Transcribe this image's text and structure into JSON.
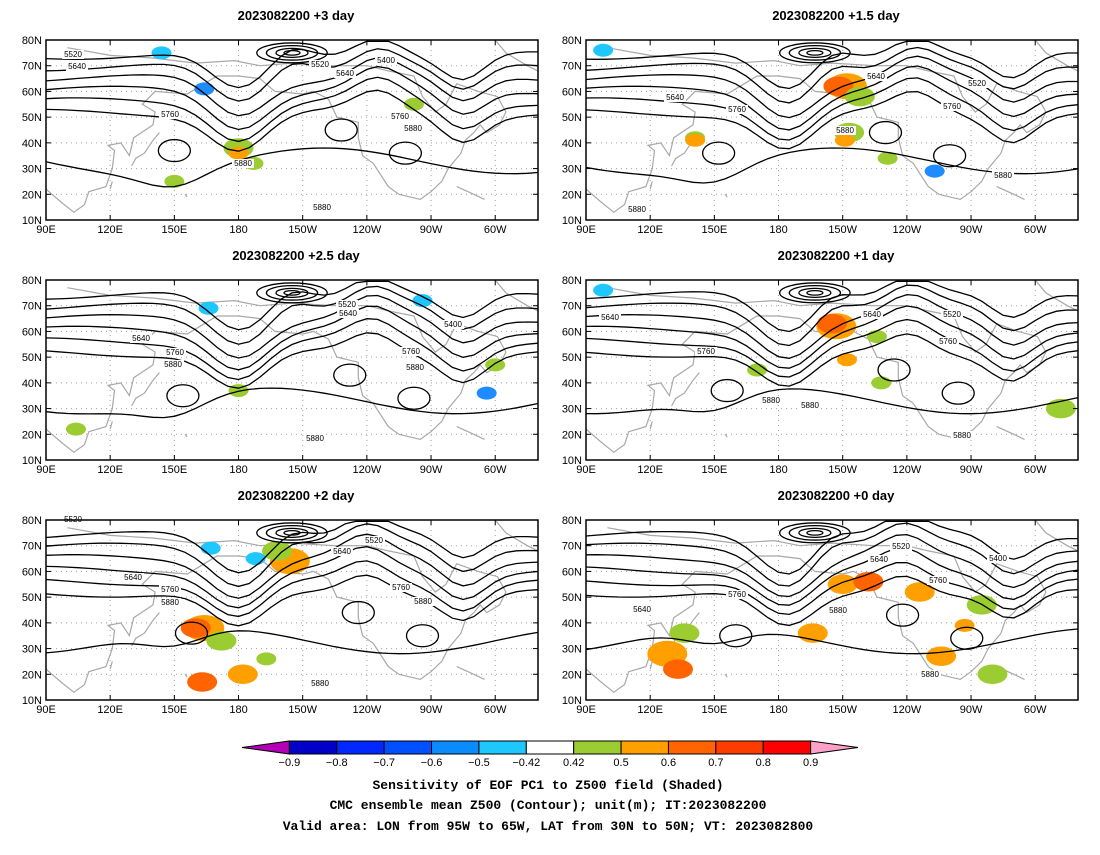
{
  "panels": [
    {
      "title": "2023082200  +3 day",
      "contour_labels": [
        "5520",
        "5640",
        "5520",
        "5640",
        "5400",
        "5760",
        "5760",
        "5880",
        "5880",
        "5880"
      ],
      "shading": [
        {
          "c": "#1ec8ff",
          "lon": 144,
          "lat": 75,
          "r": 1
        },
        {
          "c": "#1e8cff",
          "lon": 164,
          "lat": 61,
          "r": 1
        },
        {
          "c": "#9bcd32",
          "lon": 180,
          "lat": 38,
          "r": 2
        },
        {
          "c": "#ffa000",
          "lon": 180,
          "lat": 36,
          "r": 1
        },
        {
          "c": "#9bcd32",
          "lon": 187,
          "lat": 32,
          "r": 1
        },
        {
          "c": "#9bcd32",
          "lon": 262,
          "lat": 55,
          "r": 1
        },
        {
          "c": "#9bcd32",
          "lon": 150,
          "lat": 25,
          "r": 1
        }
      ]
    },
    {
      "title": "2023082200  +1.5 day",
      "contour_labels": [
        "5640",
        "5640",
        "5520",
        "5760",
        "5760",
        "5880",
        "5880",
        "5880"
      ],
      "shading": [
        {
          "c": "#1ec8ff",
          "lon": 98,
          "lat": 76,
          "r": 1
        },
        {
          "c": "#ffa000",
          "lon": 212,
          "lat": 62,
          "r": 3
        },
        {
          "c": "#ff6400",
          "lon": 208,
          "lat": 62,
          "r": 2
        },
        {
          "c": "#9bcd32",
          "lon": 218,
          "lat": 58,
          "r": 2
        },
        {
          "c": "#9bcd32",
          "lon": 141,
          "lat": 42,
          "r": 1
        },
        {
          "c": "#ffa000",
          "lon": 141,
          "lat": 41,
          "r": 1
        },
        {
          "c": "#9bcd32",
          "lon": 213,
          "lat": 44,
          "r": 2
        },
        {
          "c": "#ffa000",
          "lon": 211,
          "lat": 41,
          "r": 1
        },
        {
          "c": "#9bcd32",
          "lon": 231,
          "lat": 34,
          "r": 1
        },
        {
          "c": "#1e8cff",
          "lon": 253,
          "lat": 29,
          "r": 1
        }
      ]
    },
    {
      "title": "2023082200  +2.5 day",
      "contour_labels": [
        "5520",
        "5640",
        "5400",
        "5640",
        "5760",
        "5760",
        "5880",
        "5880",
        "5880"
      ],
      "shading": [
        {
          "c": "#1ec8ff",
          "lon": 166,
          "lat": 69,
          "r": 1
        },
        {
          "c": "#1ec8ff",
          "lon": 266,
          "lat": 72,
          "r": 1
        },
        {
          "c": "#9bcd32",
          "lon": 180,
          "lat": 37,
          "r": 1
        },
        {
          "c": "#1e8cff",
          "lon": 296,
          "lat": 36,
          "r": 1
        },
        {
          "c": "#9bcd32",
          "lon": 300,
          "lat": 47,
          "r": 1
        },
        {
          "c": "#9bcd32",
          "lon": 104,
          "lat": 22,
          "r": 1
        }
      ]
    },
    {
      "title": "2023082200  +1 day",
      "contour_labels": [
        "5640",
        "5640",
        "5520",
        "5760",
        "5760",
        "5880",
        "5880",
        "5880"
      ],
      "shading": [
        {
          "c": "#1ec8ff",
          "lon": 98,
          "lat": 76,
          "r": 1
        },
        {
          "c": "#ffa000",
          "lon": 207,
          "lat": 62,
          "r": 3
        },
        {
          "c": "#ff6400",
          "lon": 205,
          "lat": 63,
          "r": 2
        },
        {
          "c": "#9bcd32",
          "lon": 226,
          "lat": 58,
          "r": 1
        },
        {
          "c": "#9bcd32",
          "lon": 170,
          "lat": 45,
          "r": 1
        },
        {
          "c": "#ffa000",
          "lon": 212,
          "lat": 49,
          "r": 1
        },
        {
          "c": "#9bcd32",
          "lon": 228,
          "lat": 40,
          "r": 1
        },
        {
          "c": "#9bcd32",
          "lon": 312,
          "lat": 30,
          "r": 2
        }
      ]
    },
    {
      "title": "2023082200  +2 day",
      "contour_labels": [
        "5520",
        "5520",
        "5640",
        "5640",
        "5760",
        "5760",
        "5880",
        "5880",
        "5880"
      ],
      "shading": [
        {
          "c": "#ffa000",
          "lon": 204,
          "lat": 64,
          "r": 3
        },
        {
          "c": "#9bcd32",
          "lon": 198,
          "lat": 68,
          "r": 2
        },
        {
          "c": "#1ec8ff",
          "lon": 188,
          "lat": 65,
          "r": 1
        },
        {
          "c": "#1ec8ff",
          "lon": 167,
          "lat": 69,
          "r": 1
        },
        {
          "c": "#ffa000",
          "lon": 164,
          "lat": 38,
          "r": 3
        },
        {
          "c": "#ff6400",
          "lon": 160,
          "lat": 38,
          "r": 2
        },
        {
          "c": "#9bcd32",
          "lon": 172,
          "lat": 33,
          "r": 2
        },
        {
          "c": "#ffa000",
          "lon": 182,
          "lat": 20,
          "r": 2
        },
        {
          "c": "#ff6400",
          "lon": 163,
          "lat": 17,
          "r": 2
        },
        {
          "c": "#9bcd32",
          "lon": 193,
          "lat": 26,
          "r": 1
        }
      ]
    },
    {
      "title": "2023082200  +0 day",
      "contour_labels": [
        "5520",
        "5400",
        "5640",
        "5760",
        "5640",
        "5760",
        "5880",
        "5880"
      ],
      "shading": [
        {
          "c": "#ffa000",
          "lon": 210,
          "lat": 55,
          "r": 2
        },
        {
          "c": "#ff6400",
          "lon": 222,
          "lat": 56,
          "r": 2
        },
        {
          "c": "#ffa000",
          "lon": 246,
          "lat": 52,
          "r": 2
        },
        {
          "c": "#9bcd32",
          "lon": 275,
          "lat": 47,
          "r": 2
        },
        {
          "c": "#ffa000",
          "lon": 267,
          "lat": 39,
          "r": 1
        },
        {
          "c": "#ffa000",
          "lon": 128,
          "lat": 28,
          "r": 3
        },
        {
          "c": "#ff6400",
          "lon": 133,
          "lat": 22,
          "r": 2
        },
        {
          "c": "#9bcd32",
          "lon": 136,
          "lat": 36,
          "r": 2
        },
        {
          "c": "#ffa000",
          "lon": 196,
          "lat": 36,
          "r": 2
        },
        {
          "c": "#ffa000",
          "lon": 256,
          "lat": 27,
          "r": 2
        },
        {
          "c": "#9bcd32",
          "lon": 280,
          "lat": 20,
          "r": 2
        }
      ]
    }
  ],
  "axes": {
    "lat_ticks": [
      "80N",
      "70N",
      "60N",
      "50N",
      "40N",
      "30N",
      "20N",
      "10N"
    ],
    "lon_ticks": [
      "90E",
      "120E",
      "150E",
      "180",
      "150W",
      "120W",
      "90W",
      "60W"
    ],
    "lon_range": [
      90,
      320
    ],
    "lat_range": [
      10,
      80
    ]
  },
  "colorbar": {
    "colors": [
      "#b400b4",
      "#0000c8",
      "#0028ff",
      "#0050ff",
      "#0a8cff",
      "#1ec8ff",
      "#ffffff",
      "#9bcd32",
      "#ffa000",
      "#ff6400",
      "#ff3c00",
      "#ff0000",
      "#ffa0c8"
    ],
    "labels": [
      "−0.9",
      "−0.8",
      "−0.7",
      "−0.6",
      "−0.5",
      "−0.42",
      "0.42",
      "0.5",
      "0.6",
      "0.7",
      "0.8",
      "0.9"
    ]
  },
  "caption": {
    "line1": "Sensitivity of EOF PC1 to Z500 field (Shaded)",
    "line2": "CMC ensemble mean Z500 (Contour); unit(m); IT:2023082200",
    "line3": "Valid area: LON from 95W to 65W, LAT from 30N to 50N; VT: 2023082800"
  }
}
